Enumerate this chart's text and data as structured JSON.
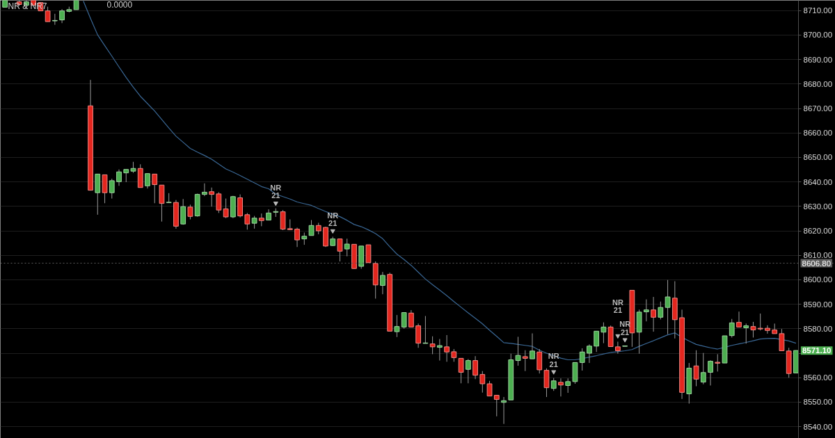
{
  "chart_data": {
    "type": "candlestick",
    "categories": [
      null,
      null,
      null,
      null,
      null,
      null,
      null,
      null,
      null,
      null,
      null,
      null,
      null,
      null,
      null,
      null,
      null,
      null,
      null,
      null,
      null,
      null,
      null,
      null,
      null,
      null,
      null,
      null,
      null,
      null,
      null,
      null,
      null,
      null,
      null,
      null,
      null,
      null,
      null,
      null,
      null,
      null,
      null,
      null,
      null,
      null,
      null,
      null,
      null,
      null,
      null,
      null,
      null,
      null,
      null,
      null,
      null,
      null,
      null,
      null,
      null,
      null,
      null,
      null,
      null,
      null,
      null,
      null,
      null,
      null,
      null,
      null,
      null,
      null,
      null,
      null,
      null,
      null,
      null,
      null,
      null,
      null,
      null,
      null,
      null,
      null,
      null,
      null,
      null,
      null,
      null,
      null,
      null,
      null,
      null,
      null,
      null,
      null,
      null,
      null,
      null,
      null,
      null,
      null,
      null,
      null,
      null,
      null,
      null,
      null,
      null,
      null
    ],
    "series": [
      {
        "type": "line",
        "color": "#3a6896",
        "values": [
          null,
          null,
          null,
          null,
          null,
          null,
          null,
          null,
          null,
          null,
          null,
          8713.9,
          8706.8,
          8700.1,
          8695.7,
          8691.4,
          8687.0,
          8682.7,
          8678.7,
          8675.0,
          8672.0,
          8669.0,
          8665.5,
          8662.0,
          8658.7,
          8656.2,
          8653.7,
          8652.2,
          8650.8,
          8649.3,
          8647.3,
          8645.3,
          8644.0,
          8642.6,
          8641.1,
          8639.6,
          8638.1,
          8637.2,
          8635.0,
          8634.0,
          8633.0,
          8631.8,
          8631.1,
          8630.4,
          8629.1,
          8627.9,
          8626.8,
          8625.8,
          8624.3,
          8622.6,
          8621.7,
          8620.4,
          8618.9,
          8616.8,
          8613.5,
          8610.5,
          8608.3,
          8605.9,
          8603.1,
          8600.3,
          8598.0,
          8595.8,
          8593.5,
          8591.1,
          8588.8,
          8586.5,
          8584.3,
          8582.0,
          8579.4,
          8576.9,
          8574.3,
          8574.0,
          8573.6,
          8573.2,
          8572.8,
          8571.2,
          8570.0,
          8569.0,
          8568.0,
          8567.3,
          8567.3,
          8567.8,
          8568.4,
          8569.0,
          8569.7,
          8570.3,
          8570.6,
          8571.0,
          8571.5,
          8572.8,
          8574.0,
          8575.1,
          8576.3,
          8577.5,
          8578.3,
          8576.5,
          8575.0,
          8573.6,
          8572.9,
          8572.2,
          8571.7,
          8572.4,
          8573.2,
          8573.8,
          8574.4,
          8575.1,
          8575.8,
          8576.0,
          8576.1,
          null,
          8575.0,
          8574.1
        ]
      },
      {
        "ohlc": [
          [
            8711.4,
            8714.2,
            8711.4,
            8714.2
          ],
          null,
          [
            8713.6,
            8714.2,
            8712.0,
            8712.5
          ],
          [
            8712.2,
            8714.2,
            8711.4,
            8713.6
          ],
          [
            8714.2,
            8714.2,
            8712.2,
            8712.2
          ],
          [
            8713.3,
            8713.5,
            8709.9,
            8709.9
          ],
          [
            8709.9,
            8711.6,
            8705.5,
            8705.5
          ],
          [
            8705.8,
            8708.7,
            8704.2,
            8706.0
          ],
          [
            8706.2,
            8710.6,
            8704.9,
            8709.9
          ],
          [
            8709.7,
            8711.6,
            8709.3,
            8710.4
          ],
          [
            8710.4,
            8714.2,
            8710.4,
            8714.2
          ],
          null,
          [
            8671.1,
            8681.7,
            8636.6,
            8636.6
          ],
          [
            8635.6,
            8643.2,
            8626.6,
            8643.2
          ],
          [
            8642.9,
            8642.9,
            8631.3,
            8635.6
          ],
          [
            8635.6,
            8641.3,
            8633.2,
            8640.5
          ],
          [
            8640.1,
            8645.1,
            8638.4,
            8644.1
          ],
          [
            8643.7,
            8645.1,
            8639.9,
            8645.1
          ],
          [
            8644.4,
            8648.2,
            8643.7,
            8645.5
          ],
          [
            8645.5,
            8647.2,
            8637.7,
            8637.7
          ],
          [
            8638.4,
            8643.4,
            8637.3,
            8643.4
          ],
          [
            8643.2,
            8643.2,
            8631.3,
            8638.9
          ],
          [
            8638.7,
            8638.7,
            8623.8,
            8631.2
          ],
          [
            8631.5,
            8635.4,
            8631.5,
            8631.7
          ],
          [
            8631.6,
            8632.6,
            8620.9,
            8621.9
          ],
          [
            8622.8,
            8633.0,
            8622.5,
            8629.9
          ],
          [
            8629.7,
            8630.7,
            8624.7,
            8625.9
          ],
          [
            8626.1,
            8635.2,
            8625.8,
            8634.9
          ],
          [
            8634.9,
            8639.4,
            8634.2,
            8635.8
          ],
          [
            8636.0,
            8637.7,
            8629.9,
            8634.9
          ],
          [
            8635.1,
            8635.8,
            8627.3,
            8628.5
          ],
          [
            8629.0,
            8633.2,
            8625.2,
            8625.7
          ],
          [
            8625.7,
            8634.3,
            8625.2,
            8634.0
          ],
          [
            8633.5,
            8634.9,
            8625.5,
            8626.1
          ],
          [
            8626.6,
            8627.3,
            8620.5,
            8622.8
          ],
          [
            8623.1,
            8626.1,
            8620.9,
            8625.2
          ],
          [
            8625.2,
            8627.1,
            8621.9,
            8624.2
          ],
          [
            8624.4,
            8628.8,
            8624.4,
            8627.3
          ],
          [
            8627.6,
            8629.2,
            8625.7,
            8627.9
          ],
          [
            8627.8,
            8628.5,
            8620.3,
            8620.7
          ],
          [
            8620.9,
            8624.7,
            8620.3,
            8620.5
          ],
          [
            8620.7,
            8621.3,
            8613.4,
            8616.3
          ],
          [
            8616.7,
            8619.3,
            8614.3,
            8617.8
          ],
          [
            8618.1,
            8624.4,
            8618.1,
            8622.2
          ],
          [
            8622.2,
            8623.3,
            8618.6,
            8620.0
          ],
          [
            8621.4,
            8621.7,
            8613.4,
            8613.8
          ],
          [
            8614.0,
            8617.6,
            8613.8,
            8616.7
          ],
          [
            8616.7,
            8616.7,
            8607.5,
            8611.7
          ],
          [
            8612.6,
            8616.8,
            8609.6,
            8614.6
          ],
          [
            8614.5,
            8614.5,
            8604.5,
            8604.6
          ],
          [
            8605.5,
            8613.8,
            8604.5,
            8613.8
          ],
          [
            8614.3,
            8614.3,
            8607.0,
            8607.0
          ],
          [
            8606.7,
            8607.5,
            8592.3,
            8597.9
          ],
          [
            8597.7,
            8603.2,
            8594.1,
            8601.8
          ],
          [
            8602.2,
            8602.9,
            8579.0,
            8579.0
          ],
          [
            8578.8,
            8585.6,
            8576.6,
            8580.9
          ],
          [
            8580.7,
            8586.6,
            8580.0,
            8586.6
          ],
          [
            8586.4,
            8587.6,
            8580.7,
            8580.7
          ],
          [
            8581.2,
            8582.1,
            8572.2,
            8574.1
          ],
          [
            8574.0,
            8585.2,
            8574.0,
            8574.2
          ],
          [
            8573.8,
            8576.9,
            8569.6,
            8572.6
          ],
          [
            8572.4,
            8575.8,
            8567.0,
            8573.1
          ],
          [
            8572.6,
            8577.4,
            8566.5,
            8570.5
          ],
          [
            8570.6,
            8571.7,
            8566.5,
            8568.2
          ],
          [
            8567.9,
            8567.9,
            8557.7,
            8562.2
          ],
          [
            8563.4,
            8567.6,
            8557.7,
            8567.0
          ],
          [
            8567.0,
            8568.8,
            8559.4,
            8561.0
          ],
          [
            8561.3,
            8562.7,
            8553.9,
            8557.5
          ],
          [
            8557.5,
            8558.7,
            8552.5,
            8552.5
          ],
          [
            8552.8,
            8552.8,
            8544.2,
            8551.1
          ],
          [
            8549.9,
            8552.1,
            8541.1,
            8550.6
          ],
          [
            8550.9,
            8569.8,
            8550.9,
            8567.3
          ],
          [
            8567.0,
            8576.7,
            8564.9,
            8569.1
          ],
          [
            8568.6,
            8571.2,
            8562.7,
            8567.9
          ],
          [
            8567.7,
            8578.1,
            8567.7,
            8570.9
          ],
          [
            8570.5,
            8571.7,
            8561.7,
            8563.2
          ],
          [
            8563.0,
            8563.8,
            8552.1,
            8555.9
          ],
          [
            8555.6,
            8559.9,
            8554.6,
            8558.7
          ],
          [
            8558.1,
            8559.7,
            8552.3,
            8557.0
          ],
          [
            8556.8,
            8559.7,
            8553.8,
            8558.4
          ],
          [
            8558.4,
            8566.2,
            8557.5,
            8566.2
          ],
          [
            8566.2,
            8572.0,
            8562.9,
            8570.5
          ],
          [
            8570.0,
            8573.6,
            8566.0,
            8572.9
          ],
          [
            8572.9,
            8579.0,
            8570.5,
            8579.0
          ],
          [
            8578.6,
            8582.6,
            8574.1,
            8580.7
          ],
          [
            8580.7,
            8581.3,
            8572.7,
            8572.7
          ],
          [
            8572.6,
            8574.7,
            8569.8,
            8571.0
          ],
          [
            8572.8,
            8573.0,
            8572.8,
            8573.0
          ],
          [
            8595.7,
            8595.7,
            8572.6,
            8578.3
          ],
          [
            8578.6,
            8587.8,
            8569.8,
            8586.8
          ],
          [
            8586.9,
            8592.0,
            8583.0,
            8587.7
          ],
          [
            8587.7,
            8593.0,
            8578.8,
            8584.7
          ],
          [
            8584.7,
            8591.1,
            8583.8,
            8588.7
          ],
          [
            8588.7,
            8599.9,
            8577.8,
            8593.0
          ],
          [
            8592.5,
            8599.4,
            8576.0,
            8583.7
          ],
          [
            8584.5,
            8587.8,
            8551.3,
            8554.0
          ],
          [
            8553.4,
            8566.0,
            8549.4,
            8563.9
          ],
          [
            8564.8,
            8571.2,
            8556.5,
            8559.4
          ],
          [
            8558.2,
            8570.1,
            8557.3,
            8562.1
          ],
          [
            8562.2,
            8567.1,
            8556.8,
            8566.7
          ],
          [
            8566.3,
            8569.6,
            8562.5,
            8565.9
          ],
          [
            8566.0,
            8577.1,
            8566.0,
            8577.1
          ],
          [
            8577.2,
            8584.0,
            8576.4,
            8582.4
          ],
          [
            8582.6,
            8587.0,
            8580.7,
            8580.7
          ],
          [
            8580.4,
            8582.1,
            8573.9,
            8581.2
          ],
          [
            8580.9,
            8582.8,
            8576.4,
            8579.5
          ],
          [
            8580.2,
            8586.2,
            8579.3,
            8579.9
          ],
          [
            8580.2,
            8581.4,
            8578.0,
            8579.3
          ],
          [
            8579.5,
            8582.1,
            8578.0,
            8578.0
          ],
          [
            8578.0,
            8579.9,
            8571.0,
            8571.0
          ],
          [
            8570.9,
            8572.2,
            8560.0,
            8561.7
          ],
          [
            8561.9,
            8571.2,
            8561.9,
            8571.1
          ]
        ],
        "colors": [
          "#4caf50",
          null,
          "#e3261e",
          "#4caf50",
          "#e3261e",
          "#e3261e",
          "#e3261e",
          "#4caf50",
          "#4caf50",
          "#4caf50",
          "#4caf50",
          null,
          "#e3261e",
          "#4caf50",
          "#e3261e",
          "#4caf50",
          "#4caf50",
          "#4caf50",
          "#4caf50",
          "#e3261e",
          "#4caf50",
          "#e3261e",
          "#e3261e",
          "#4caf50",
          "#e3261e",
          "#4caf50",
          "#e3261e",
          "#4caf50",
          "#4caf50",
          "#e3261e",
          "#e3261e",
          "#e3261e",
          "#4caf50",
          "#e3261e",
          "#e3261e",
          "#4caf50",
          "#e3261e",
          "#4caf50",
          "#4caf50",
          "#e3261e",
          "#e3261e",
          "#e3261e",
          "#4caf50",
          "#4caf50",
          "#e3261e",
          "#e3261e",
          "#4caf50",
          "#e3261e",
          "#4caf50",
          "#e3261e",
          "#4caf50",
          "#e3261e",
          "#e3261e",
          "#4caf50",
          "#e3261e",
          "#4caf50",
          "#4caf50",
          "#e3261e",
          "#e3261e",
          "#4caf50",
          "#e3261e",
          "#4caf50",
          "#e3261e",
          "#e3261e",
          "#e3261e",
          "#4caf50",
          "#e3261e",
          "#e3261e",
          "#e3261e",
          "#e3261e",
          "#4caf50",
          "#4caf50",
          "#4caf50",
          "#e3261e",
          "#4caf50",
          "#e3261e",
          "#e3261e",
          "#4caf50",
          "#e3261e",
          "#4caf50",
          "#4caf50",
          "#4caf50",
          "#4caf50",
          "#4caf50",
          "#4caf50",
          "#e3261e",
          "#e3261e",
          "#4caf50",
          "#e3261e",
          "#4caf50",
          "#4caf50",
          "#e3261e",
          "#4caf50",
          "#4caf50",
          "#e3261e",
          "#e3261e",
          "#4caf50",
          "#e3261e",
          "#4caf50",
          "#4caf50",
          "#e3261e",
          "#4caf50",
          "#4caf50",
          "#e3261e",
          "#4caf50",
          "#e3261e",
          "#e3261e",
          "#e3261e",
          "#e3261e",
          "#e3261e",
          "#e3261e",
          "#4caf50"
        ],
        "value_labels": [
          null,
          null,
          null,
          null,
          null,
          null,
          null,
          null,
          null,
          null,
          null,
          null,
          null,
          null,
          null,
          null,
          null,
          null,
          null,
          null,
          null,
          null,
          null,
          null,
          null,
          null,
          null,
          null,
          null,
          null,
          null,
          null,
          null,
          null,
          null,
          null,
          null,
          null,
          null,
          null,
          null,
          null,
          null,
          null,
          null,
          null,
          null,
          null,
          null,
          null,
          null,
          null,
          null,
          null,
          null,
          null,
          null,
          null,
          null,
          null,
          null,
          null,
          null,
          null,
          null,
          null,
          null,
          null,
          null,
          null,
          null,
          null,
          null,
          null,
          null,
          null,
          null,
          null,
          null,
          null,
          null,
          null,
          null,
          null,
          null,
          null,
          null,
          null,
          null,
          null,
          null,
          null,
          null,
          null,
          null,
          null,
          null,
          null,
          null,
          null,
          null,
          null,
          null,
          null,
          null,
          null,
          null,
          null,
          null,
          null,
          null,
          "8571.10"
        ]
      },
      {
        "type": "scatter",
        "marker": "triangle",
        "color": "#b8b8b8",
        "values": [
          null,
          null,
          null,
          null,
          null,
          null,
          null,
          null,
          null,
          null,
          null,
          null,
          null,
          null,
          null,
          null,
          null,
          null,
          null,
          null,
          null,
          null,
          null,
          null,
          null,
          null,
          null,
          null,
          null,
          null,
          null,
          null,
          null,
          null,
          null,
          null,
          null,
          null,
          8631.3,
          null,
          null,
          null,
          null,
          null,
          null,
          null,
          8620.0,
          null,
          null,
          null,
          null,
          null,
          null,
          null,
          null,
          null,
          null,
          null,
          null,
          null,
          null,
          null,
          null,
          null,
          null,
          null,
          null,
          null,
          null,
          null,
          null,
          null,
          null,
          null,
          null,
          null,
          null,
          8562.4,
          null,
          null,
          null,
          null,
          null,
          null,
          null,
          null,
          8577.1,
          8575.5,
          null,
          null,
          null,
          null,
          null,
          null,
          null,
          null,
          null,
          null,
          null,
          null,
          null,
          null,
          null,
          null,
          null,
          null,
          null,
          null,
          null,
          null,
          null,
          null
        ],
        "value_labels": [
          null,
          null,
          null,
          null,
          null,
          null,
          null,
          null,
          null,
          null,
          null,
          null,
          null,
          null,
          null,
          null,
          null,
          null,
          null,
          null,
          null,
          null,
          null,
          null,
          null,
          null,
          null,
          null,
          null,
          null,
          null,
          null,
          null,
          null,
          null,
          null,
          null,
          null,
          "NR\n21",
          null,
          null,
          null,
          null,
          null,
          null,
          null,
          "NR\n21",
          null,
          null,
          null,
          null,
          null,
          null,
          null,
          null,
          null,
          null,
          null,
          null,
          null,
          null,
          null,
          null,
          null,
          null,
          null,
          null,
          null,
          null,
          null,
          null,
          null,
          null,
          null,
          null,
          null,
          null,
          "NR\n21",
          null,
          null,
          null,
          null,
          null,
          null,
          null,
          null,
          "NR\n21",
          "NR\n21",
          null,
          null,
          null,
          null,
          null,
          null,
          null,
          null,
          null,
          null,
          null,
          null,
          null,
          null,
          null,
          null,
          null,
          null,
          null,
          null,
          null,
          null,
          null,
          null
        ]
      }
    ],
    "ylim": [
      8535.2,
      8714.2
    ],
    "yticks": [
      {
        "value": 8540,
        "label": "8540.00"
      },
      {
        "value": 8550,
        "label": "8550.00"
      },
      {
        "value": 8560,
        "label": "8560.00"
      },
      {
        "value": 8570,
        "label": null
      },
      {
        "value": 8580,
        "label": "8580.00"
      },
      {
        "value": 8590,
        "label": "8590.00"
      },
      {
        "value": 8600,
        "label": "8600.00"
      },
      {
        "value": 8610,
        "label": "8610.00"
      },
      {
        "value": 8620,
        "label": "8620.00"
      },
      {
        "value": 8630,
        "label": "8630.00"
      },
      {
        "value": 8640,
        "label": "8640.00"
      },
      {
        "value": 8650,
        "label": "8650.00"
      },
      {
        "value": 8660,
        "label": "8660.00"
      },
      {
        "value": 8670,
        "label": "8670.00"
      },
      {
        "value": 8680,
        "label": "8680.00"
      },
      {
        "value": 8690,
        "label": "8690.00"
      },
      {
        "value": 8700,
        "label": "8700.00"
      },
      {
        "value": 8710,
        "label": "8710.00"
      }
    ],
    "grid": "y",
    "tick_labels": "y",
    "ref_lines": [
      {
        "axis": "y",
        "value": 8606.8,
        "label": "8606.80",
        "line_style": "dotted",
        "color": "#5c5c5c"
      }
    ],
    "annotations": [
      "NR & NR7",
      "0.0000"
    ]
  }
}
